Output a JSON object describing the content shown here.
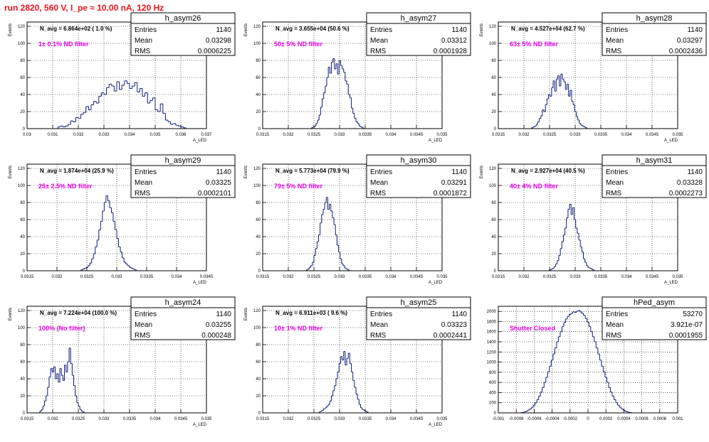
{
  "page": {
    "title": "run 2820,   560 V, I_pe ≈ 10.00 nA, 120 Hz"
  },
  "chart_data": [
    {
      "type": "bar",
      "name": "h_asym26",
      "ylabel": "Events",
      "xlabel": "A_LED",
      "stats": {
        "entries_label": "Entries",
        "mean_label": "Mean",
        "rms_label": "RMS",
        "entries": "1140",
        "mean": "0.03298",
        "rms": "0.0006225"
      },
      "navg": "N_avg = 6.864e+02 ( 1.0 %)",
      "annotation": "1± 0.1% ND filter",
      "xlim": [
        0.03,
        0.037
      ],
      "ylim": [
        0,
        125
      ],
      "xticks": [
        {
          "v": 0.03,
          "t": "0.03"
        },
        {
          "v": 0.031,
          "t": "0.031"
        },
        {
          "v": 0.032,
          "t": "0.032"
        },
        {
          "v": 0.033,
          "t": "0.033"
        },
        {
          "v": 0.034,
          "t": "0.034"
        },
        {
          "v": 0.035,
          "t": "0.035"
        },
        {
          "v": 0.036,
          "t": "0.036"
        },
        {
          "v": 0.037,
          "t": "0.037"
        }
      ],
      "yticks": [
        {
          "v": 0,
          "t": "0"
        },
        {
          "v": 20,
          "t": "20"
        },
        {
          "v": 40,
          "t": "40"
        },
        {
          "v": 60,
          "t": "60"
        },
        {
          "v": 80,
          "t": "80"
        },
        {
          "v": 100,
          "t": "100"
        },
        {
          "v": 120,
          "t": "120"
        }
      ],
      "bins": {
        "start": 0.0312,
        "width": 0.0001,
        "values": [
          2,
          3,
          2,
          3,
          5,
          9,
          8,
          13,
          12,
          17,
          19,
          26,
          22,
          28,
          32,
          30,
          38,
          42,
          40,
          48,
          52,
          50,
          44,
          55,
          46,
          51,
          56,
          53,
          47,
          50,
          54,
          43,
          47,
          38,
          42,
          30,
          33,
          36,
          22,
          20,
          29,
          18,
          10,
          8,
          5,
          6,
          4,
          3,
          2,
          1
        ]
      }
    },
    {
      "type": "bar",
      "name": "h_asym27",
      "ylabel": "Events",
      "xlabel": "A_LED",
      "stats": {
        "entries_label": "Entries",
        "mean_label": "Mean",
        "rms_label": "RMS",
        "entries": "1140",
        "mean": "0.03312",
        "rms": "0.0001928"
      },
      "navg": "N_avg = 3.655e+04 (50.6 %)",
      "annotation": "50± 5% ND filter",
      "xlim": [
        0.0315,
        0.035
      ],
      "ylim": [
        0,
        125
      ],
      "xticks": [
        {
          "v": 0.0315,
          "t": "0.0315"
        },
        {
          "v": 0.032,
          "t": "0.032"
        },
        {
          "v": 0.0325,
          "t": "0.0325"
        },
        {
          "v": 0.033,
          "t": "0.033"
        },
        {
          "v": 0.0335,
          "t": "0.0335"
        },
        {
          "v": 0.034,
          "t": "0.034"
        },
        {
          "v": 0.0345,
          "t": "0.0345"
        },
        {
          "v": 0.035,
          "t": "0.035"
        }
      ],
      "yticks": [
        {
          "v": 0,
          "t": "0"
        },
        {
          "v": 20,
          "t": "20"
        },
        {
          "v": 40,
          "t": "40"
        },
        {
          "v": 60,
          "t": "60"
        },
        {
          "v": 80,
          "t": "80"
        },
        {
          "v": 100,
          "t": "100"
        },
        {
          "v": 120,
          "t": "120"
        }
      ],
      "bins": {
        "start": 0.03245,
        "width": 3e-05,
        "values": [
          1,
          2,
          3,
          6,
          10,
          16,
          25,
          35,
          42,
          50,
          60,
          72,
          65,
          78,
          82,
          70,
          76,
          64,
          80,
          74,
          70,
          66,
          56,
          52,
          40,
          36,
          24,
          18,
          12,
          8,
          6,
          3,
          2,
          1
        ]
      }
    },
    {
      "type": "bar",
      "name": "h_asym28",
      "ylabel": "Events",
      "xlabel": "A_LED",
      "stats": {
        "entries_label": "Entries",
        "mean_label": "Mean",
        "rms_label": "RMS",
        "entries": "1140",
        "mean": "0.03297",
        "rms": "0.0002436"
      },
      "navg": "N_avg = 4.527e+04 (62.7 %)",
      "annotation": "63± 5% ND filter",
      "xlim": [
        0.0315,
        0.035
      ],
      "ylim": [
        0,
        125
      ],
      "xticks": [
        {
          "v": 0.0315,
          "t": "0.0315"
        },
        {
          "v": 0.032,
          "t": "0.032"
        },
        {
          "v": 0.0325,
          "t": "0.0325"
        },
        {
          "v": 0.033,
          "t": "0.033"
        },
        {
          "v": 0.0335,
          "t": "0.0335"
        },
        {
          "v": 0.034,
          "t": "0.034"
        },
        {
          "v": 0.0345,
          "t": "0.0345"
        },
        {
          "v": 0.035,
          "t": "0.035"
        }
      ],
      "yticks": [
        {
          "v": 0,
          "t": "0"
        },
        {
          "v": 20,
          "t": "20"
        },
        {
          "v": 40,
          "t": "40"
        },
        {
          "v": 60,
          "t": "60"
        },
        {
          "v": 80,
          "t": "80"
        },
        {
          "v": 100,
          "t": "100"
        },
        {
          "v": 120,
          "t": "120"
        }
      ],
      "bins": {
        "start": 0.03215,
        "width": 3e-05,
        "values": [
          1,
          2,
          3,
          5,
          8,
          12,
          15,
          22,
          20,
          28,
          35,
          40,
          38,
          48,
          56,
          44,
          58,
          62,
          50,
          64,
          58,
          55,
          46,
          52,
          38,
          45,
          32,
          28,
          20,
          14,
          10,
          6,
          4,
          3,
          2,
          1
        ]
      }
    },
    {
      "type": "bar",
      "name": "h_asym29",
      "ylabel": "Events",
      "xlabel": "A_LED",
      "stats": {
        "entries_label": "Entries",
        "mean_label": "Mean",
        "rms_label": "RMS",
        "entries": "1140",
        "mean": "0.03325",
        "rms": "0.0002101"
      },
      "navg": "N_avg = 1.874e+04 (25.9 %)",
      "annotation": "25± 2.5% ND filter",
      "xlim": [
        0.0315,
        0.0345
      ],
      "ylim": [
        0,
        125
      ],
      "xticks": [
        {
          "v": 0.0315,
          "t": "0.0315"
        },
        {
          "v": 0.032,
          "t": "0.032"
        },
        {
          "v": 0.0325,
          "t": "0.0325"
        },
        {
          "v": 0.033,
          "t": "0.033"
        },
        {
          "v": 0.0335,
          "t": "0.0335"
        },
        {
          "v": 0.034,
          "t": "0.034"
        },
        {
          "v": 0.0345,
          "t": "0.0345"
        }
      ],
      "yticks": [
        {
          "v": 0,
          "t": "0"
        },
        {
          "v": 20,
          "t": "20"
        },
        {
          "v": 40,
          "t": "40"
        },
        {
          "v": 60,
          "t": "60"
        },
        {
          "v": 80,
          "t": "80"
        },
        {
          "v": 100,
          "t": "100"
        },
        {
          "v": 120,
          "t": "120"
        }
      ],
      "bins": {
        "start": 0.0324,
        "width": 3e-05,
        "values": [
          1,
          2,
          3,
          4,
          6,
          9,
          14,
          20,
          28,
          36,
          48,
          58,
          70,
          80,
          88,
          82,
          74,
          68,
          58,
          48,
          38,
          28,
          22,
          15,
          10,
          8,
          6,
          4,
          3,
          2,
          1
        ]
      }
    },
    {
      "type": "bar",
      "name": "h_asym30",
      "ylabel": "Events",
      "xlabel": "A_LED",
      "stats": {
        "entries_label": "Entries",
        "mean_label": "Mean",
        "rms_label": "RMS",
        "entries": "1140",
        "mean": "0.03291",
        "rms": "0.0001872"
      },
      "navg": "N_avg = 5.773e+04 (79.9 %)",
      "annotation": "79± 5% ND filter",
      "xlim": [
        0.0315,
        0.035
      ],
      "ylim": [
        0,
        125
      ],
      "xticks": [
        {
          "v": 0.0315,
          "t": "0.0315"
        },
        {
          "v": 0.032,
          "t": "0.032"
        },
        {
          "v": 0.0325,
          "t": "0.0325"
        },
        {
          "v": 0.033,
          "t": "0.033"
        },
        {
          "v": 0.0335,
          "t": "0.0335"
        },
        {
          "v": 0.034,
          "t": "0.034"
        },
        {
          "v": 0.0345,
          "t": "0.0345"
        },
        {
          "v": 0.035,
          "t": "0.035"
        }
      ],
      "yticks": [
        {
          "v": 0,
          "t": "0"
        },
        {
          "v": 20,
          "t": "20"
        },
        {
          "v": 40,
          "t": "40"
        },
        {
          "v": 60,
          "t": "60"
        },
        {
          "v": 80,
          "t": "80"
        },
        {
          "v": 100,
          "t": "100"
        },
        {
          "v": 120,
          "t": "120"
        }
      ],
      "bins": {
        "start": 0.03235,
        "width": 3e-05,
        "values": [
          1,
          2,
          4,
          6,
          10,
          18,
          26,
          34,
          42,
          56,
          66,
          72,
          80,
          86,
          72,
          78,
          70,
          62,
          54,
          42,
          30,
          22,
          14,
          8,
          6,
          3,
          2,
          1
        ]
      }
    },
    {
      "type": "bar",
      "name": "h_asym31",
      "ylabel": "Events",
      "xlabel": "A_LED",
      "stats": {
        "entries_label": "Entries",
        "mean_label": "Mean",
        "rms_label": "RMS",
        "entries": "1140",
        "mean": "0.03328",
        "rms": "0.0002273"
      },
      "navg": "N_avg = 2.927e+04 (40.5 %)",
      "annotation": "40± 4% ND filter",
      "xlim": [
        0.0315,
        0.035
      ],
      "ylim": [
        0,
        125
      ],
      "xticks": [
        {
          "v": 0.0315,
          "t": "0.0315"
        },
        {
          "v": 0.032,
          "t": "0.032"
        },
        {
          "v": 0.0325,
          "t": "0.0325"
        },
        {
          "v": 0.033,
          "t": "0.033"
        },
        {
          "v": 0.0335,
          "t": "0.0335"
        },
        {
          "v": 0.034,
          "t": "0.034"
        },
        {
          "v": 0.0345,
          "t": "0.0345"
        },
        {
          "v": 0.035,
          "t": "0.035"
        }
      ],
      "yticks": [
        {
          "v": 0,
          "t": "0"
        },
        {
          "v": 20,
          "t": "20"
        },
        {
          "v": 40,
          "t": "40"
        },
        {
          "v": 60,
          "t": "60"
        },
        {
          "v": 80,
          "t": "80"
        },
        {
          "v": 100,
          "t": "100"
        },
        {
          "v": 120,
          "t": "120"
        }
      ],
      "bins": {
        "start": 0.0325,
        "width": 3e-05,
        "values": [
          1,
          2,
          3,
          5,
          8,
          12,
          18,
          26,
          34,
          42,
          50,
          62,
          72,
          78,
          66,
          74,
          60,
          50,
          44,
          36,
          28,
          22,
          14,
          10,
          6,
          4,
          3,
          2,
          1
        ]
      }
    },
    {
      "type": "bar",
      "name": "h_asym24",
      "ylabel": "Events",
      "xlabel": "A_LED",
      "stats": {
        "entries_label": "Entries",
        "mean_label": "Mean",
        "rms_label": "RMS",
        "entries": "1140",
        "mean": "0.03255",
        "rms": "0.000248"
      },
      "navg": "N_avg = 7.224e+04 (100.0 %)",
      "annotation": "100% (No filter)",
      "xlim": [
        0.0315,
        0.035
      ],
      "ylim": [
        0,
        125
      ],
      "xticks": [
        {
          "v": 0.0315,
          "t": "0.0315"
        },
        {
          "v": 0.032,
          "t": "0.032"
        },
        {
          "v": 0.0325,
          "t": "0.0325"
        },
        {
          "v": 0.033,
          "t": "0.033"
        },
        {
          "v": 0.0335,
          "t": "0.0335"
        },
        {
          "v": 0.034,
          "t": "0.034"
        },
        {
          "v": 0.0345,
          "t": "0.0345"
        },
        {
          "v": 0.035,
          "t": "0.035"
        }
      ],
      "yticks": [
        {
          "v": 0,
          "t": "0"
        },
        {
          "v": 20,
          "t": "20"
        },
        {
          "v": 40,
          "t": "40"
        },
        {
          "v": 60,
          "t": "60"
        },
        {
          "v": 80,
          "t": "80"
        },
        {
          "v": 100,
          "t": "100"
        },
        {
          "v": 120,
          "t": "120"
        }
      ],
      "bins": {
        "start": 0.03175,
        "width": 3e-05,
        "values": [
          2,
          4,
          8,
          14,
          20,
          30,
          42,
          52,
          48,
          54,
          40,
          46,
          36,
          52,
          44,
          38,
          56,
          48,
          60,
          76,
          58,
          44,
          32,
          20,
          12,
          8,
          4,
          2,
          1
        ]
      }
    },
    {
      "type": "bar",
      "name": "h_asym25",
      "ylabel": "Events",
      "xlabel": "A_LED",
      "stats": {
        "entries_label": "Entries",
        "mean_label": "Mean",
        "rms_label": "RMS",
        "entries": "1140",
        "mean": "0.03323",
        "rms": "0.0002441"
      },
      "navg": "N_avg = 6.911e+03 ( 9.6 %)",
      "annotation": "10± 1% ND filter",
      "xlim": [
        0.0315,
        0.035
      ],
      "ylim": [
        0,
        125
      ],
      "xticks": [
        {
          "v": 0.0315,
          "t": "0.0315"
        },
        {
          "v": 0.032,
          "t": "0.032"
        },
        {
          "v": 0.0325,
          "t": "0.0325"
        },
        {
          "v": 0.033,
          "t": "0.033"
        },
        {
          "v": 0.0335,
          "t": "0.0335"
        },
        {
          "v": 0.034,
          "t": "0.034"
        },
        {
          "v": 0.0345,
          "t": "0.0345"
        },
        {
          "v": 0.035,
          "t": "0.035"
        }
      ],
      "yticks": [
        {
          "v": 0,
          "t": "0"
        },
        {
          "v": 20,
          "t": "20"
        },
        {
          "v": 40,
          "t": "40"
        },
        {
          "v": 60,
          "t": "60"
        },
        {
          "v": 80,
          "t": "80"
        },
        {
          "v": 100,
          "t": "100"
        },
        {
          "v": 120,
          "t": "120"
        }
      ],
      "bins": {
        "start": 0.0326,
        "width": 3e-05,
        "values": [
          1,
          2,
          3,
          5,
          6,
          8,
          10,
          14,
          20,
          26,
          32,
          40,
          48,
          58,
          66,
          62,
          72,
          56,
          64,
          70,
          58,
          48,
          38,
          30,
          22,
          16,
          10,
          6,
          4,
          3,
          2,
          1
        ]
      }
    },
    {
      "type": "bar",
      "name": "hPed_asym",
      "ylabel": "",
      "xlabel": "",
      "stats": {
        "entries_label": "Entries",
        "mean_label": "Mean",
        "rms_label": "RMS",
        "entries": "53270",
        "mean": "3.921e-07",
        "rms": "0.0001955"
      },
      "navg": "",
      "annotation": "Shutter Closed",
      "xlim": [
        -0.001,
        0.001
      ],
      "ylim": [
        0,
        2100
      ],
      "xticks": [
        {
          "v": -0.001,
          "t": "-0.001"
        },
        {
          "v": -0.0008,
          "t": "-0.0008"
        },
        {
          "v": -0.0006,
          "t": "-0.0006"
        },
        {
          "v": -0.0004,
          "t": "-0.0004"
        },
        {
          "v": -0.0002,
          "t": "-0.0002"
        },
        {
          "v": 0,
          "t": "0"
        },
        {
          "v": 0.0002,
          "t": "0.0002"
        },
        {
          "v": 0.0004,
          "t": "0.0004"
        },
        {
          "v": 0.0006,
          "t": "0.0006"
        },
        {
          "v": 0.0008,
          "t": "0.0008"
        },
        {
          "v": 0.001,
          "t": "0.001"
        }
      ],
      "yticks": [
        {
          "v": 0,
          "t": "0"
        },
        {
          "v": 200,
          "t": "200"
        },
        {
          "v": 400,
          "t": "400"
        },
        {
          "v": 600,
          "t": "600"
        },
        {
          "v": 800,
          "t": "800"
        },
        {
          "v": 1000,
          "t": "1000"
        },
        {
          "v": 1200,
          "t": "1200"
        },
        {
          "v": 1400,
          "t": "1400"
        },
        {
          "v": 1600,
          "t": "1600"
        },
        {
          "v": 1800,
          "t": "1800"
        },
        {
          "v": 2000,
          "t": "2000"
        }
      ],
      "bins": {
        "start": -0.00075,
        "width": 2e-05,
        "values": [
          5,
          10,
          20,
          35,
          55,
          80,
          110,
          150,
          200,
          260,
          330,
          410,
          500,
          600,
          700,
          810,
          920,
          1040,
          1160,
          1280,
          1400,
          1500,
          1600,
          1700,
          1780,
          1850,
          1900,
          1940,
          1960,
          1990,
          1980,
          2000,
          2020,
          1990,
          1960,
          1920,
          1860,
          1790,
          1700,
          1600,
          1500,
          1400,
          1280,
          1160,
          1040,
          920,
          810,
          700,
          600,
          500,
          410,
          330,
          260,
          200,
          150,
          110,
          80,
          55,
          35,
          20,
          10,
          5
        ]
      }
    }
  ]
}
